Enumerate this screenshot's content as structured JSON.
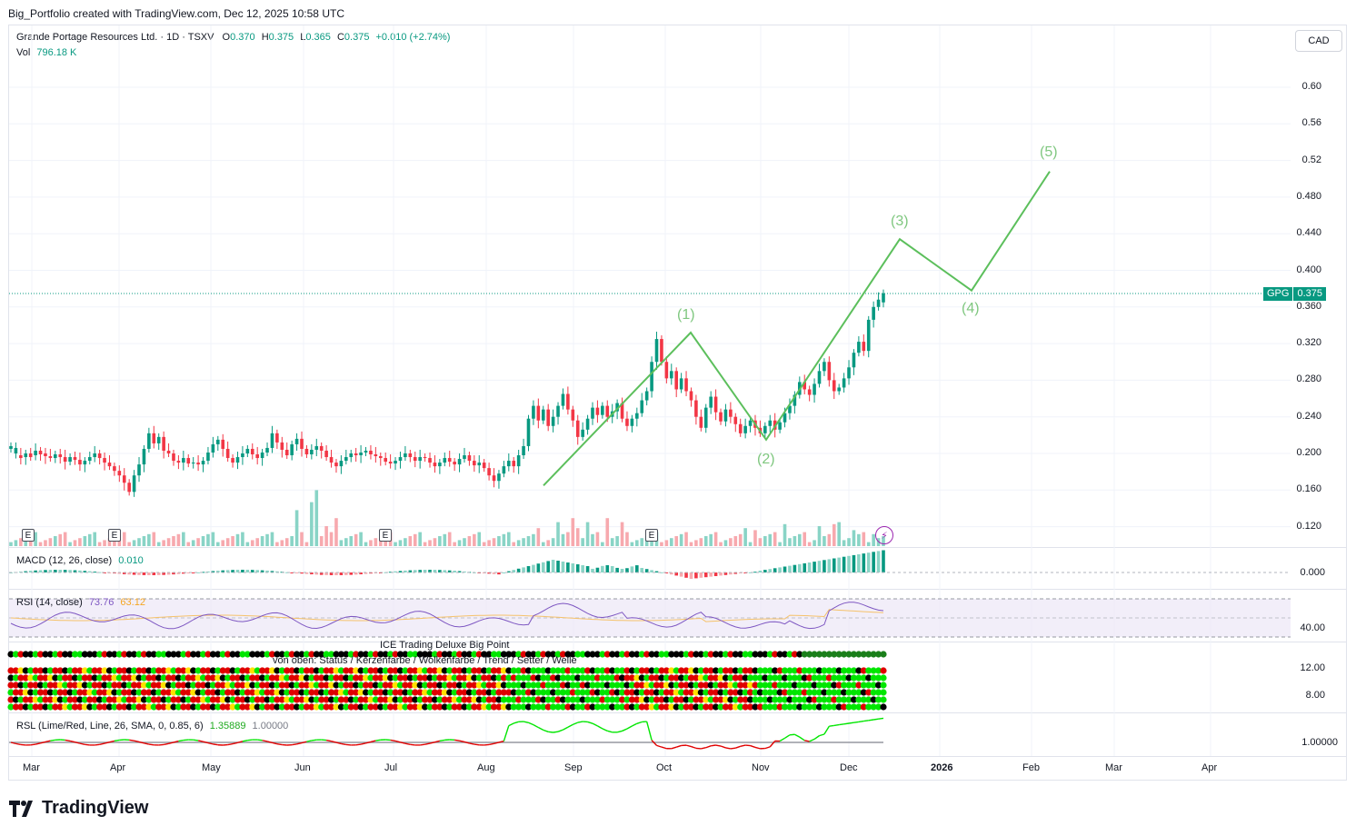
{
  "header": {
    "credit": "Big_Portfolio created with TradingView.com, Dec 12, 2025 10:58 UTC"
  },
  "symbol": {
    "name": "Grande Portage Resources Ltd. · 1D · TSXV",
    "o_label": "O",
    "o_value": "0.370",
    "h_label": "H",
    "h_value": "0.375",
    "l_label": "L",
    "l_value": "0.365",
    "c_label": "C",
    "c_value": "0.375",
    "change": "+0.010 (+2.74%)",
    "vol_label": "Vol",
    "vol_value": "796.18 K",
    "currency": "CAD",
    "ticker": "GPG",
    "last_price": "0.375"
  },
  "price_axis": [
    "0.60",
    "0.56",
    "0.52",
    "0.480",
    "0.440",
    "0.400",
    "0.360",
    "0.320",
    "0.280",
    "0.240",
    "0.200",
    "0.160",
    "0.120"
  ],
  "time_axis": [
    "Mar",
    "Apr",
    "May",
    "Jun",
    "Jul",
    "Aug",
    "Sep",
    "Oct",
    "Nov",
    "Dec",
    "2026",
    "Feb",
    "Mar",
    "Apr"
  ],
  "earnings_badge": "E",
  "waves": [
    "(1)",
    "(2)",
    "(3)",
    "(4)",
    "(5)"
  ],
  "macd": {
    "label": "MACD (12, 26, close)",
    "value": "0.010",
    "axis": "0.000"
  },
  "rsi": {
    "label": "RSI (14, close)",
    "value": "73.76",
    "ma": "63.12",
    "axis": "40.00"
  },
  "ice": {
    "title": "ICE Trading Deluxe Big Point",
    "subtitle": "von oben: Status / Kerzenfarbe / Wolkenfarbe / Trend / Setter / Welle",
    "axis_top": "12.00",
    "axis_bottom": "8.00"
  },
  "rsl": {
    "label": "RSL (Lime/Red, Line, 26, SMA, 0, 0.85, 6)",
    "value1": "1.35889",
    "value2": "1.00000",
    "axis": "1.00000"
  },
  "colors": {
    "up": "#089981",
    "down": "#f23645",
    "wave": "#5cbf5c",
    "rsi": "#7e57c2",
    "lime": "#00e600",
    "red": "#e00000"
  },
  "logo": "TradingView",
  "chart_data": {
    "type": "candlestick",
    "title": "Grande Portage Resources Ltd. · 1D · TSXV",
    "ylim": [
      0.12,
      0.6
    ],
    "wave_path": [
      {
        "label": "start",
        "date": "Aug 20",
        "y": 0.165
      },
      {
        "label": "(1)",
        "date": "Oct 8",
        "y": 0.332
      },
      {
        "label": "(2)",
        "date": "Nov 3",
        "y": 0.215
      },
      {
        "label": "(3)",
        "date": "Dec 18",
        "y": 0.434
      },
      {
        "label": "(4)",
        "date": "Jan 13",
        "y": 0.378
      },
      {
        "label": "(5)",
        "date": "Feb 6",
        "y": 0.508
      }
    ],
    "last": 0.375
  }
}
